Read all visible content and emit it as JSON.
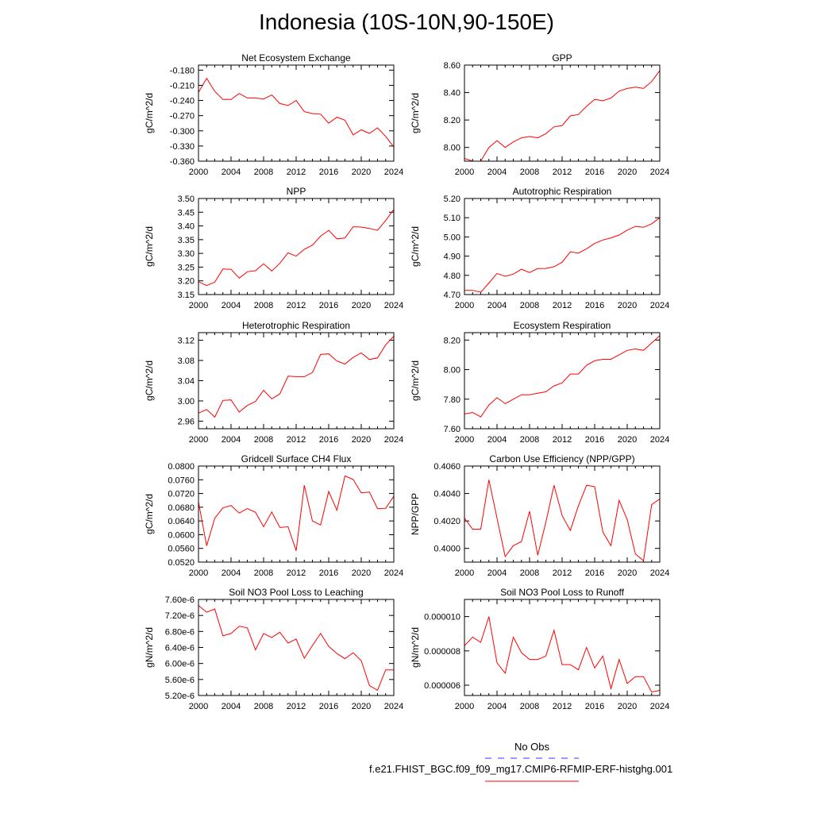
{
  "title": "Indonesia (10S-10N,90-150E)",
  "colors": {
    "series": "#ff0000",
    "obs": "#3333ff",
    "axis": "#000000"
  },
  "legend": {
    "obs_label": "No Obs",
    "run_label": "f.e21.FHIST_BGC.f09_f09_mg17.CMIP6-RFMIP-ERF-histghg.001"
  },
  "chart_data": [
    {
      "type": "line",
      "title": "Net Ecosystem Exchange",
      "ylabel": "gC/m^2/d",
      "xlim": [
        2000,
        2024
      ],
      "ylim": [
        -0.36,
        -0.17
      ],
      "xticks": [
        "2000",
        "2004",
        "2008",
        "2012",
        "2016",
        "2020",
        "2024"
      ],
      "yticks": [
        "-0.180",
        "-0.210",
        "-0.240",
        "-0.270",
        "-0.300",
        "-0.330",
        "-0.360"
      ],
      "x": [
        2000,
        2001,
        2002,
        2003,
        2004,
        2005,
        2006,
        2007,
        2008,
        2009,
        2010,
        2011,
        2012,
        2013,
        2014,
        2015,
        2016,
        2017,
        2018,
        2019,
        2020,
        2021,
        2022,
        2023,
        2024
      ],
      "values": [
        -0.224,
        -0.196,
        -0.222,
        -0.238,
        -0.238,
        -0.226,
        -0.235,
        -0.235,
        -0.237,
        -0.229,
        -0.246,
        -0.25,
        -0.24,
        -0.262,
        -0.266,
        -0.267,
        -0.285,
        -0.273,
        -0.279,
        -0.308,
        -0.298,
        -0.305,
        -0.294,
        -0.311,
        -0.332
      ]
    },
    {
      "type": "line",
      "title": "GPP",
      "ylabel": "gC/m^2/d",
      "xlim": [
        2000,
        2024
      ],
      "ylim": [
        7.9,
        8.6
      ],
      "xticks": [
        "2000",
        "2004",
        "2008",
        "2012",
        "2016",
        "2020",
        "2024"
      ],
      "yticks": [
        "8.60",
        "8.40",
        "8.20",
        "8.00"
      ],
      "x": [
        2000,
        2001,
        2002,
        2003,
        2004,
        2005,
        2006,
        2007,
        2008,
        2009,
        2010,
        2011,
        2012,
        2013,
        2014,
        2015,
        2016,
        2017,
        2018,
        2019,
        2020,
        2021,
        2022,
        2023,
        2024
      ],
      "values": [
        7.92,
        7.9,
        7.9,
        8.0,
        8.05,
        8.0,
        8.04,
        8.07,
        8.08,
        8.07,
        8.1,
        8.15,
        8.16,
        8.23,
        8.24,
        8.3,
        8.35,
        8.34,
        8.36,
        8.41,
        8.43,
        8.44,
        8.43,
        8.48,
        8.56
      ]
    },
    {
      "type": "line",
      "title": "NPP",
      "ylabel": "gC/m^2/d",
      "xlim": [
        2000,
        2024
      ],
      "ylim": [
        3.15,
        3.5
      ],
      "xticks": [
        "2000",
        "2004",
        "2008",
        "2012",
        "2016",
        "2020",
        "2024"
      ],
      "yticks": [
        "3.50",
        "3.45",
        "3.40",
        "3.35",
        "3.30",
        "3.25",
        "3.20",
        "3.15"
      ],
      "x": [
        2000,
        2001,
        2002,
        2003,
        2004,
        2005,
        2006,
        2007,
        2008,
        2009,
        2010,
        2011,
        2012,
        2013,
        2014,
        2015,
        2016,
        2017,
        2018,
        2019,
        2020,
        2021,
        2022,
        2023,
        2024
      ],
      "values": [
        3.197,
        3.183,
        3.195,
        3.243,
        3.242,
        3.21,
        3.233,
        3.237,
        3.262,
        3.236,
        3.264,
        3.302,
        3.29,
        3.315,
        3.33,
        3.363,
        3.384,
        3.353,
        3.356,
        3.397,
        3.396,
        3.391,
        3.384,
        3.42,
        3.46
      ]
    },
    {
      "type": "line",
      "title": "Autotrophic Respiration",
      "ylabel": "gC/m^2/d",
      "xlim": [
        2000,
        2024
      ],
      "ylim": [
        4.7,
        5.2
      ],
      "xticks": [
        "2000",
        "2004",
        "2008",
        "2012",
        "2016",
        "2020",
        "2024"
      ],
      "yticks": [
        "5.20",
        "5.10",
        "5.00",
        "4.90",
        "4.80",
        "4.70"
      ],
      "x": [
        2000,
        2001,
        2002,
        2003,
        2004,
        2005,
        2006,
        2007,
        2008,
        2009,
        2010,
        2011,
        2012,
        2013,
        2014,
        2015,
        2016,
        2017,
        2018,
        2019,
        2020,
        2021,
        2022,
        2023,
        2024
      ],
      "values": [
        4.722,
        4.722,
        4.712,
        4.76,
        4.81,
        4.795,
        4.806,
        4.832,
        4.815,
        4.835,
        4.836,
        4.845,
        4.868,
        4.922,
        4.916,
        4.938,
        4.966,
        4.984,
        4.995,
        5.01,
        5.035,
        5.055,
        5.05,
        5.068,
        5.1
      ]
    },
    {
      "type": "line",
      "title": "Heterotrophic Respiration",
      "ylabel": "gC/m^2/d",
      "xlim": [
        2000,
        2024
      ],
      "ylim": [
        2.945,
        3.135
      ],
      "xticks": [
        "2000",
        "2004",
        "2008",
        "2012",
        "2016",
        "2020",
        "2024"
      ],
      "yticks": [
        "3.12",
        "3.08",
        "3.04",
        "3.00",
        "2.96"
      ],
      "x": [
        2000,
        2001,
        2002,
        2003,
        2004,
        2005,
        2006,
        2007,
        2008,
        2009,
        2010,
        2011,
        2012,
        2013,
        2014,
        2015,
        2016,
        2017,
        2018,
        2019,
        2020,
        2021,
        2022,
        2023,
        2024
      ],
      "values": [
        2.976,
        2.983,
        2.968,
        3.001,
        3.002,
        2.978,
        2.991,
        2.999,
        3.021,
        3.004,
        3.014,
        3.049,
        3.048,
        3.048,
        3.056,
        3.092,
        3.093,
        3.079,
        3.073,
        3.086,
        3.095,
        3.082,
        3.085,
        3.111,
        3.128
      ]
    },
    {
      "type": "line",
      "title": "Ecosystem Respiration",
      "ylabel": "gC/m^2/d",
      "xlim": [
        2000,
        2024
      ],
      "ylim": [
        7.6,
        8.25
      ],
      "xticks": [
        "2000",
        "2004",
        "2008",
        "2012",
        "2016",
        "2020",
        "2024"
      ],
      "yticks": [
        "8.20",
        "8.00",
        "7.80",
        "7.60"
      ],
      "x": [
        2000,
        2001,
        2002,
        2003,
        2004,
        2005,
        2006,
        2007,
        2008,
        2009,
        2010,
        2011,
        2012,
        2013,
        2014,
        2015,
        2016,
        2017,
        2018,
        2019,
        2020,
        2021,
        2022,
        2023,
        2024
      ],
      "values": [
        7.7,
        7.71,
        7.68,
        7.76,
        7.81,
        7.77,
        7.8,
        7.83,
        7.83,
        7.84,
        7.85,
        7.89,
        7.91,
        7.97,
        7.97,
        8.03,
        8.06,
        8.07,
        8.07,
        8.1,
        8.13,
        8.14,
        8.13,
        8.18,
        8.23
      ]
    },
    {
      "type": "line",
      "title": "Gridcell Surface CH4 Flux",
      "ylabel": "gC/m^2/d",
      "xlim": [
        2000,
        2024
      ],
      "ylim": [
        0.052,
        0.08
      ],
      "xticks": [
        "2000",
        "2004",
        "2008",
        "2012",
        "2016",
        "2020",
        "2024"
      ],
      "yticks": [
        "0.0800",
        "0.0760",
        "0.0720",
        "0.0680",
        "0.0640",
        "0.0600",
        "0.0560",
        "0.0520"
      ],
      "x": [
        2000,
        2001,
        2002,
        2003,
        2004,
        2005,
        2006,
        2007,
        2008,
        2009,
        2010,
        2011,
        2012,
        2013,
        2014,
        2015,
        2016,
        2017,
        2018,
        2019,
        2020,
        2021,
        2022,
        2023,
        2024
      ],
      "values": [
        0.0695,
        0.0568,
        0.0648,
        0.0678,
        0.0685,
        0.0663,
        0.0676,
        0.0665,
        0.0623,
        0.0666,
        0.0621,
        0.0623,
        0.0553,
        0.0744,
        0.064,
        0.0628,
        0.0726,
        0.0671,
        0.0771,
        0.0761,
        0.0722,
        0.0724,
        0.0676,
        0.0677,
        0.0712
      ]
    },
    {
      "type": "line",
      "title": "Carbon Use Efficiency (NPP/GPP)",
      "ylabel": "NPP/GPP",
      "xlim": [
        2000,
        2024
      ],
      "ylim": [
        0.399,
        0.406
      ],
      "xticks": [
        "2000",
        "2004",
        "2008",
        "2012",
        "2016",
        "2020",
        "2024"
      ],
      "yticks": [
        "0.4060",
        "0.4040",
        "0.4020",
        "0.4000"
      ],
      "x": [
        2000,
        2001,
        2002,
        2003,
        2004,
        2005,
        2006,
        2007,
        2008,
        2009,
        2010,
        2011,
        2012,
        2013,
        2014,
        2015,
        2016,
        2017,
        2018,
        2019,
        2020,
        2021,
        2022,
        2023,
        2024
      ],
      "values": [
        0.4022,
        0.4014,
        0.4014,
        0.405,
        0.4022,
        0.3994,
        0.4002,
        0.4005,
        0.4027,
        0.3995,
        0.4019,
        0.4046,
        0.4024,
        0.4013,
        0.4031,
        0.4046,
        0.4045,
        0.4012,
        0.4002,
        0.4035,
        0.4021,
        0.3996,
        0.3991,
        0.4032,
        0.4036
      ]
    },
    {
      "type": "line",
      "title": "Soil NO3 Pool Loss to Leaching",
      "ylabel": "gN/m^2/d",
      "xlim": [
        2000,
        2024
      ],
      "ylim": [
        5.2e-06,
        7.6e-06
      ],
      "xticks": [
        "2000",
        "2004",
        "2008",
        "2012",
        "2016",
        "2020",
        "2024"
      ],
      "yticks": [
        "7.60e-6",
        "7.20e-6",
        "6.80e-6",
        "6.40e-6",
        "6.00e-6",
        "5.60e-6",
        "5.20e-6"
      ],
      "x": [
        2000,
        2001,
        2002,
        2003,
        2004,
        2005,
        2006,
        2007,
        2008,
        2009,
        2010,
        2011,
        2012,
        2013,
        2014,
        2015,
        2016,
        2017,
        2018,
        2019,
        2020,
        2021,
        2022,
        2023,
        2024
      ],
      "values": [
        7.45e-06,
        7.28e-06,
        7.36e-06,
        6.69e-06,
        6.75e-06,
        6.93e-06,
        6.89e-06,
        6.34e-06,
        6.75e-06,
        6.65e-06,
        6.78e-06,
        6.51e-06,
        6.61e-06,
        6.13e-06,
        6.45e-06,
        6.75e-06,
        6.43e-06,
        6.25e-06,
        6.12e-06,
        6.27e-06,
        6.07e-06,
        5.45e-06,
        5.33e-06,
        5.84e-06,
        5.84e-06
      ]
    },
    {
      "type": "line",
      "title": "Soil NO3 Pool Loss to Runoff",
      "ylabel": "gN/m^2/d",
      "xlim": [
        2000,
        2024
      ],
      "ylim": [
        5.4e-06,
        1.1e-05
      ],
      "xticks": [
        "2000",
        "2004",
        "2008",
        "2012",
        "2016",
        "2020",
        "2024"
      ],
      "yticks": [
        "0.000010",
        "0.000008",
        "0.000006"
      ],
      "ytick_values": [
        1e-05,
        8e-06,
        6e-06
      ],
      "x": [
        2000,
        2001,
        2002,
        2003,
        2004,
        2005,
        2006,
        2007,
        2008,
        2009,
        2010,
        2011,
        2012,
        2013,
        2014,
        2015,
        2016,
        2017,
        2018,
        2019,
        2020,
        2021,
        2022,
        2023,
        2024
      ],
      "values": [
        8.3e-06,
        8.8e-06,
        8.5e-06,
        1e-05,
        7.3e-06,
        6.7e-06,
        8.8e-06,
        7.9e-06,
        7.5e-06,
        7.5e-06,
        7.7e-06,
        9.2e-06,
        7.2e-06,
        7.2e-06,
        6.9e-06,
        8.2e-06,
        7e-06,
        7.7e-06,
        5.8e-06,
        7.5e-06,
        6.1e-06,
        6.5e-06,
        6.5e-06,
        5.6e-06,
        5.7e-06
      ]
    }
  ]
}
